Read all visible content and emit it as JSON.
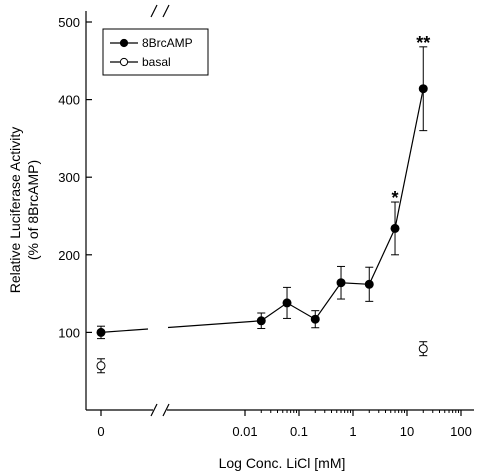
{
  "chart_data": {
    "type": "line",
    "xlabel": "Log Conc. LiCl [mM]",
    "ylabel_line1": "Relative Luciferase Activity",
    "ylabel_line2": "(% of 8BrcAMP)",
    "ylim": [
      0,
      500
    ],
    "yticks": [
      100,
      200,
      300,
      400,
      500
    ],
    "x_scale": "log with broken axis (0 shown separately)",
    "xticks": [
      {
        "value": 0,
        "label": "0"
      },
      {
        "value": 0.01,
        "label": "0.01"
      },
      {
        "value": 0.1,
        "label": "0.1"
      },
      {
        "value": 1,
        "label": "1"
      },
      {
        "value": 10,
        "label": "10"
      },
      {
        "value": 100,
        "label": "100"
      }
    ],
    "legend_position": "top-left",
    "series": [
      {
        "name": "8BrcAMP",
        "marker": "filled-circle",
        "color": "#000000",
        "points": [
          {
            "x": 0,
            "y": 100,
            "err": 8
          },
          {
            "x": 0.02,
            "y": 115,
            "err": 10
          },
          {
            "x": 0.06,
            "y": 138,
            "err": 20
          },
          {
            "x": 0.2,
            "y": 117,
            "err": 11
          },
          {
            "x": 0.6,
            "y": 164,
            "err": 21
          },
          {
            "x": 2,
            "y": 162,
            "err": 22
          },
          {
            "x": 6,
            "y": 234,
            "err": 34
          },
          {
            "x": 20,
            "y": 414,
            "err": 54
          }
        ]
      },
      {
        "name": "basal",
        "marker": "open-circle",
        "color": "#000000",
        "points": [
          {
            "x": 0,
            "y": 57,
            "err": 9
          },
          {
            "x": 20,
            "y": 79,
            "err": 9
          }
        ]
      }
    ],
    "annotations": [
      {
        "text": "*",
        "x": 6,
        "y": 268
      },
      {
        "text": "**",
        "x": 20,
        "y": 468
      }
    ]
  }
}
